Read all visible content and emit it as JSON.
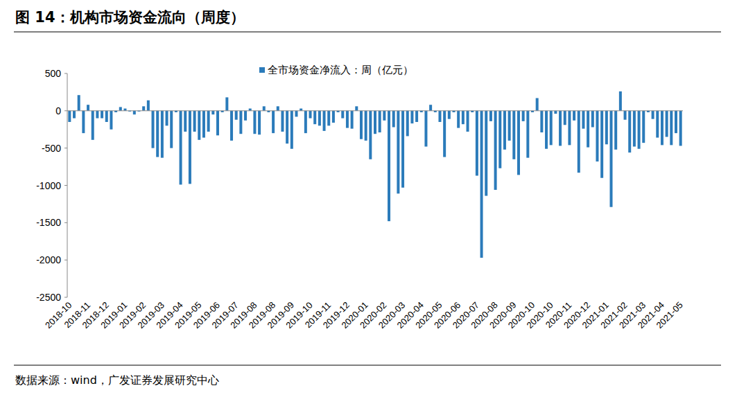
{
  "chart_data": {
    "type": "bar",
    "title": "图 14：机构市场资金流向（周度）",
    "annotations": [
      "数据来源：wind，广发证券发展研究中心"
    ],
    "categories": [
      "2018-10",
      null,
      null,
      null,
      "2018-11",
      null,
      null,
      null,
      "2018-12",
      null,
      null,
      null,
      "2019-01",
      null,
      null,
      null,
      "2019-02",
      null,
      null,
      null,
      "2019-03",
      null,
      null,
      null,
      "2019-04",
      null,
      null,
      null,
      "2019-05",
      null,
      null,
      null,
      "2019-06",
      null,
      null,
      null,
      "2019-07",
      null,
      null,
      null,
      "2019-08",
      null,
      null,
      null,
      "2019-08",
      null,
      null,
      null,
      "2019-09",
      null,
      null,
      null,
      "2019-10",
      null,
      null,
      null,
      "2019-11",
      null,
      null,
      null,
      "2019-12",
      null,
      null,
      null,
      "2020-01",
      null,
      null,
      null,
      "2020-02",
      null,
      null,
      null,
      "2020-03",
      null,
      null,
      null,
      "2020-04",
      null,
      null,
      null,
      "2020-05",
      null,
      null,
      null,
      "2020-06",
      null,
      null,
      null,
      "2020-07",
      null,
      null,
      null,
      "2020-08",
      null,
      null,
      null,
      "2020-09",
      null,
      null,
      null,
      "2020-10",
      null,
      null,
      null,
      "2020-10",
      null,
      null,
      null,
      "2020-11",
      null,
      null,
      null,
      "2020-12",
      null,
      null,
      null,
      "2021-01",
      null,
      null,
      null,
      "2021-02",
      null,
      null,
      null,
      "2021-03",
      null,
      null,
      null,
      "2021-04",
      null,
      null,
      null,
      "2021-05"
    ],
    "series": [
      {
        "name": "全市场资金净流入：周（亿元）",
        "color": "#2b7bba",
        "values": [
          -150,
          -100,
          210,
          -300,
          80,
          -390,
          -100,
          -100,
          -150,
          -250,
          -20,
          50,
          30,
          -10,
          -50,
          -10,
          60,
          140,
          -500,
          -620,
          -630,
          -200,
          -500,
          -20,
          -990,
          -280,
          -980,
          -280,
          -390,
          -360,
          -280,
          -50,
          -330,
          -20,
          180,
          -400,
          -120,
          -310,
          -130,
          30,
          -310,
          -320,
          60,
          -20,
          -300,
          60,
          -280,
          -440,
          -510,
          -80,
          30,
          -300,
          -100,
          -180,
          -200,
          -270,
          -200,
          -160,
          -20,
          -100,
          -230,
          -240,
          60,
          -380,
          -400,
          -650,
          -310,
          -290,
          -130,
          -1480,
          -220,
          -1110,
          -1030,
          -340,
          -170,
          -150,
          -20,
          -480,
          80,
          -20,
          -150,
          -620,
          -110,
          -20,
          -230,
          -180,
          -280,
          -20,
          -870,
          -1970,
          -1140,
          -140,
          -1060,
          -770,
          -520,
          -400,
          -650,
          -860,
          -140,
          -630,
          -20,
          170,
          -290,
          -510,
          -460,
          -40,
          -470,
          -190,
          -460,
          -130,
          -830,
          -240,
          -490,
          -220,
          -680,
          -900,
          -450,
          -1290,
          -520,
          260,
          -120,
          -560,
          -480,
          -510,
          -430,
          -20,
          -110,
          -360,
          -460,
          -350,
          -460,
          -300,
          -470
        ]
      }
    ],
    "ylim": [
      -2500,
      500
    ],
    "yticks": [
      500,
      0,
      -500,
      -1000,
      -1500,
      -2000,
      -2500
    ],
    "grid": false,
    "legend": "top"
  }
}
